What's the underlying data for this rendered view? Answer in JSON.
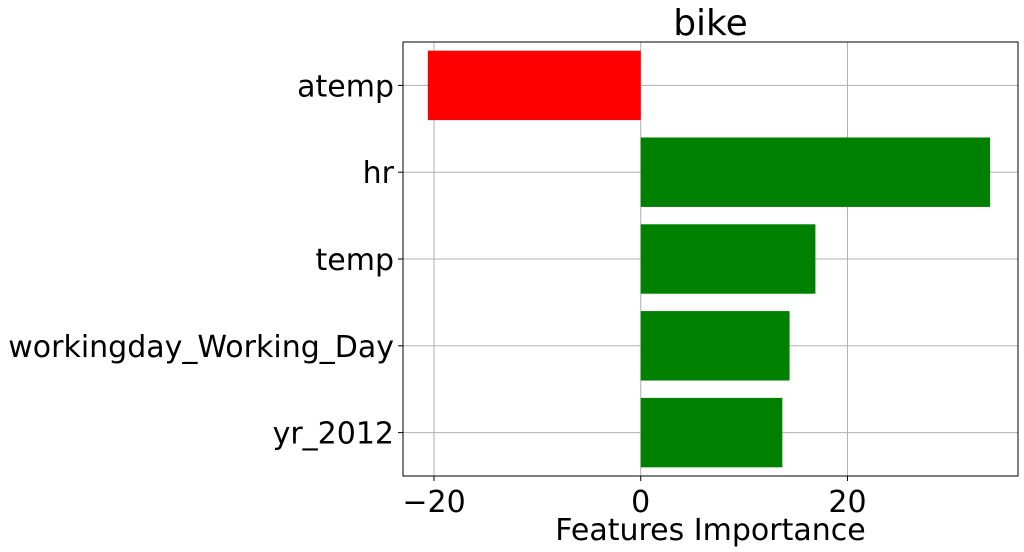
{
  "chart_data": {
    "type": "bar",
    "orientation": "horizontal",
    "title": "bike",
    "xlabel": "Features Importance",
    "ylabel": "",
    "categories": [
      "atemp",
      "hr",
      "temp",
      "workingday_Working_Day",
      "yr_2012"
    ],
    "values": [
      -20.6,
      33.8,
      16.9,
      14.4,
      13.7
    ],
    "xlim": [
      -23,
      36.5
    ],
    "xticks": [
      -20,
      0,
      20
    ],
    "xtick_labels": [
      "−20",
      "0",
      "20"
    ],
    "grid": true,
    "colors": {
      "positive": "#008000",
      "negative": "#ff0000"
    }
  }
}
